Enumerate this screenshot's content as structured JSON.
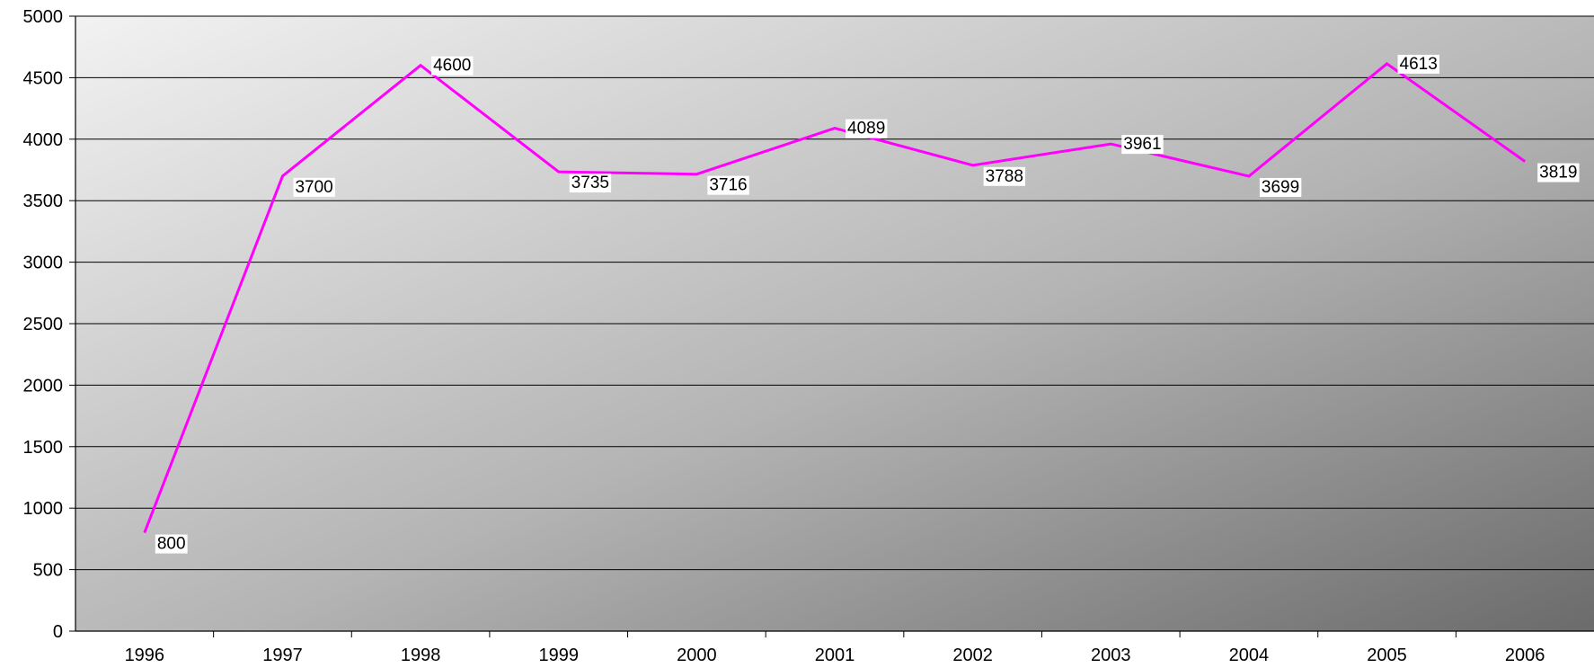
{
  "chart_data": {
    "type": "line",
    "title": "",
    "xlabel": "",
    "ylabel": "",
    "categories": [
      "1996",
      "1997",
      "1998",
      "1999",
      "2000",
      "2001",
      "2002",
      "2003",
      "2004",
      "2005",
      "2006"
    ],
    "series": [
      {
        "values": [
          800,
          3700,
          4600,
          3735,
          3716,
          4089,
          3788,
          3961,
          3699,
          4613,
          3819
        ],
        "color": "#ff00ff"
      }
    ],
    "data_labels": [
      "800",
      "3700",
      "4600",
      "3735",
      "3716",
      "4089",
      "3788",
      "3961",
      "3699",
      "4613",
      "3819"
    ],
    "ylim": [
      0,
      5000
    ],
    "yticks": [
      0,
      500,
      1000,
      1500,
      2000,
      2500,
      3000,
      3500,
      4000,
      4500,
      5000
    ],
    "ytick_labels": [
      "0",
      "500",
      "1000",
      "1500",
      "2000",
      "2500",
      "3000",
      "3500",
      "4000",
      "4500",
      "5000"
    ],
    "grid": true,
    "legend": "none",
    "plot_background": "gradient light gray (top-left) to dark gray (bottom-right)"
  }
}
